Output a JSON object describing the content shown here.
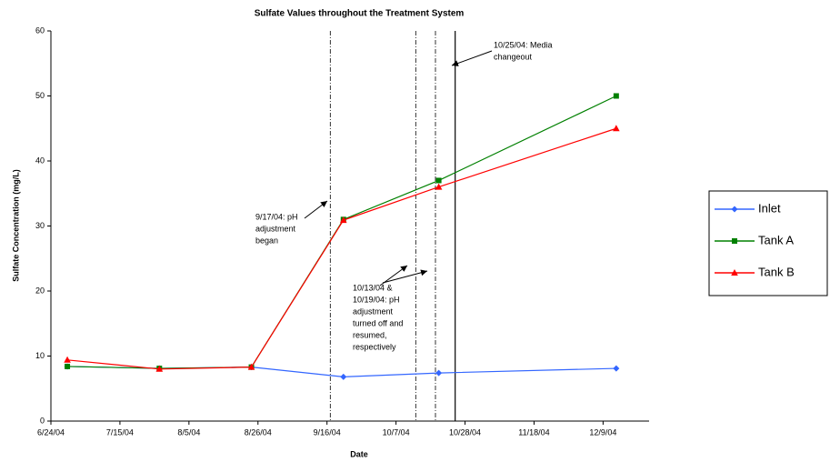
{
  "chart_data": {
    "type": "line",
    "title": "Sulfate Values throughout the Treatment System",
    "x_label": "Date",
    "y_label": "Sulfate Concentration (mg/L)",
    "x": [
      "6/29/04",
      "7/27/04",
      "8/24/04",
      "9/21/04",
      "10/20/04",
      "12/13/04"
    ],
    "series": [
      {
        "name": "Inlet",
        "color": "#3366ff",
        "marker": "diamond",
        "values": [
          8.4,
          8.1,
          8.3,
          6.8,
          7.4,
          8.1
        ]
      },
      {
        "name": "Tank A",
        "color": "#008000",
        "marker": "square",
        "values": [
          8.4,
          8.1,
          8.3,
          31,
          37,
          50
        ]
      },
      {
        "name": "Tank B",
        "color": "#ff0000",
        "marker": "triangle",
        "values": [
          9.4,
          8.0,
          8.3,
          30.9,
          36,
          45
        ]
      }
    ],
    "xlim": [
      "6/24/04",
      "12/23/04"
    ],
    "xticks": [
      "6/24/04",
      "7/15/04",
      "8/5/04",
      "8/26/04",
      "9/16/04",
      "10/7/04",
      "10/28/04",
      "11/18/04",
      "12/9/04"
    ],
    "ylim": [
      0,
      60
    ],
    "yticks": [
      0,
      10,
      20,
      30,
      40,
      50,
      60
    ],
    "vlines": [
      {
        "x": "9/17/04",
        "style": "dashdot"
      },
      {
        "x": "10/13/04",
        "style": "dashdot"
      },
      {
        "x": "10/19/04",
        "style": "dashdot"
      },
      {
        "x": "10/25/04",
        "style": "solid"
      }
    ],
    "annotations": [
      {
        "lines": [
          "10/25/04: Media",
          "changeout"
        ]
      },
      {
        "lines": [
          "9/17/04: pH",
          "adjustment",
          "began"
        ]
      },
      {
        "lines": [
          "10/13/04 &",
          "10/19/04: pH",
          "adjustment",
          "turned off and",
          "resumed,",
          "respectively"
        ]
      }
    ],
    "legend": "right"
  }
}
